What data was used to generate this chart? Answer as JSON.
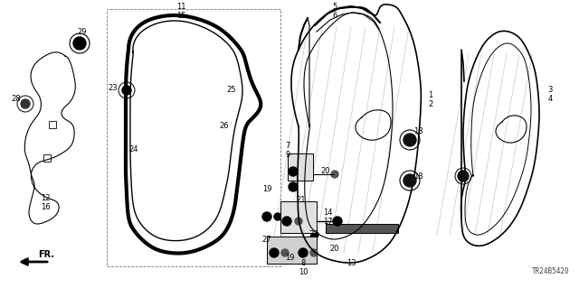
{
  "bg_color": "#ffffff",
  "fig_width": 6.4,
  "fig_height": 3.19,
  "dpi": 100,
  "diagram_code": "TR24B5420"
}
